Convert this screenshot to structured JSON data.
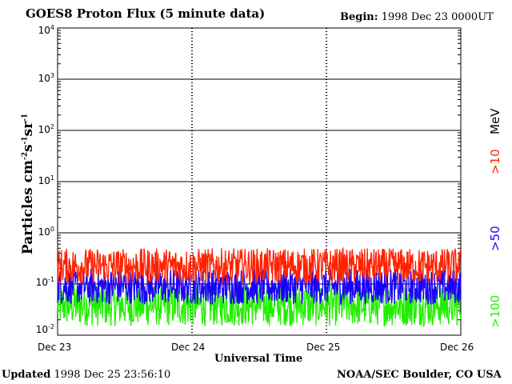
{
  "header": {
    "title": "GOES8 Proton Flux (5 minute data)",
    "begin_label": "Begin:",
    "begin_value": "1998 Dec 23 0000UT"
  },
  "footer": {
    "updated_label": "Updated",
    "updated_value": "1998 Dec 25 23:56:10",
    "credit": "NOAA/SEC Boulder, CO USA"
  },
  "chart_data": {
    "type": "line",
    "title": "GOES8 Proton Flux (5 minute data)",
    "xlabel": "Universal Time",
    "ylabel": "Particles cm-2s-1sr-1",
    "ylabel_base": "Particles cm",
    "ylabel_exp1": "-2",
    "ylabel_mid1": "s",
    "ylabel_exp2": "-1",
    "ylabel_mid2": "sr",
    "ylabel_exp3": "-1",
    "y_scale": "log",
    "ylim": [
      0.01,
      10000
    ],
    "xlim": [
      "1998-12-23T00:00",
      "1998-12-26T00:00"
    ],
    "x_ticks": [
      "Dec 23",
      "Dec 24",
      "Dec 25",
      "Dec 26"
    ],
    "y_ticks": [
      {
        "base": "10",
        "exp": "-2",
        "value": 0.01
      },
      {
        "base": "10",
        "exp": "-1",
        "value": 0.1
      },
      {
        "base": "10",
        "exp": "0",
        "value": 1
      },
      {
        "base": "10",
        "exp": "1",
        "value": 10
      },
      {
        "base": "10",
        "exp": "2",
        "value": 100
      },
      {
        "base": "10",
        "exp": "3",
        "value": 1000
      },
      {
        "base": "10",
        "exp": "4",
        "value": 10000
      }
    ],
    "grid": true,
    "legend_placement": "right",
    "legend_unit": "MeV",
    "series": [
      {
        "name": ">10",
        "color": "#ff2200",
        "typical_range": [
          0.1,
          0.5
        ]
      },
      {
        "name": ">50",
        "color": "#1a00ff",
        "typical_range": [
          0.04,
          0.2
        ]
      },
      {
        "name": ">100",
        "color": "#22ee00",
        "typical_range": [
          0.015,
          0.1
        ]
      }
    ]
  }
}
